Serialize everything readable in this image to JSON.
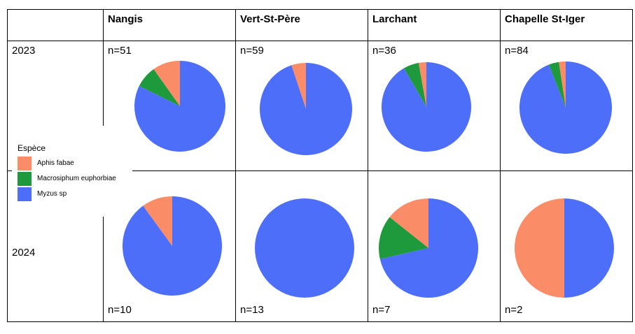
{
  "colors": {
    "Aphis fabae": "#fa8c68",
    "Macrosiphum euphorbiae": "#1e9a3d",
    "Myzus sp": "#4d6ef8"
  },
  "legend": {
    "title": "Espèce",
    "items": [
      "Aphis fabae",
      "Macrosiphum euphorbiae",
      "Myzus sp"
    ]
  },
  "sites": [
    "Nangis",
    "Vert-St-Père",
    "Larchant",
    "Chapelle St-Iger"
  ],
  "years": [
    "2023",
    "2024"
  ],
  "chart_data": [
    {
      "type": "pie",
      "year": "2023",
      "site": "Nangis",
      "n_label": "n=51",
      "categories": [
        "Aphis fabae",
        "Macrosiphum euphorbiae",
        "Myzus sp"
      ],
      "values": [
        5,
        4,
        42
      ]
    },
    {
      "type": "pie",
      "year": "2023",
      "site": "Vert-St-Père",
      "n_label": "n=59",
      "categories": [
        "Aphis fabae",
        "Macrosiphum euphorbiae",
        "Myzus sp"
      ],
      "values": [
        3,
        0,
        56
      ]
    },
    {
      "type": "pie",
      "year": "2023",
      "site": "Larchant",
      "n_label": "n=36",
      "categories": [
        "Aphis fabae",
        "Macrosiphum euphorbiae",
        "Myzus sp"
      ],
      "values": [
        1,
        2,
        33
      ]
    },
    {
      "type": "pie",
      "year": "2023",
      "site": "Chapelle St-Iger",
      "n_label": "n=84",
      "categories": [
        "Aphis fabae",
        "Macrosiphum euphorbiae",
        "Myzus sp"
      ],
      "values": [
        2,
        3,
        79
      ]
    },
    {
      "type": "pie",
      "year": "2024",
      "site": "Nangis",
      "n_label": "n=10",
      "categories": [
        "Aphis fabae",
        "Macrosiphum euphorbiae",
        "Myzus sp"
      ],
      "values": [
        1,
        0,
        9
      ]
    },
    {
      "type": "pie",
      "year": "2024",
      "site": "Vert-St-Père",
      "n_label": "n=13",
      "categories": [
        "Aphis fabae",
        "Macrosiphum euphorbiae",
        "Myzus sp"
      ],
      "values": [
        0,
        0,
        13
      ]
    },
    {
      "type": "pie",
      "year": "2024",
      "site": "Larchant",
      "n_label": "n=7",
      "categories": [
        "Aphis fabae",
        "Macrosiphum euphorbiae",
        "Myzus sp"
      ],
      "values": [
        1,
        1,
        5
      ]
    },
    {
      "type": "pie",
      "year": "2024",
      "site": "Chapelle St-Iger",
      "n_label": "n=2",
      "categories": [
        "Aphis fabae",
        "Macrosiphum euphorbiae",
        "Myzus sp"
      ],
      "values": [
        1,
        0,
        1
      ]
    }
  ]
}
